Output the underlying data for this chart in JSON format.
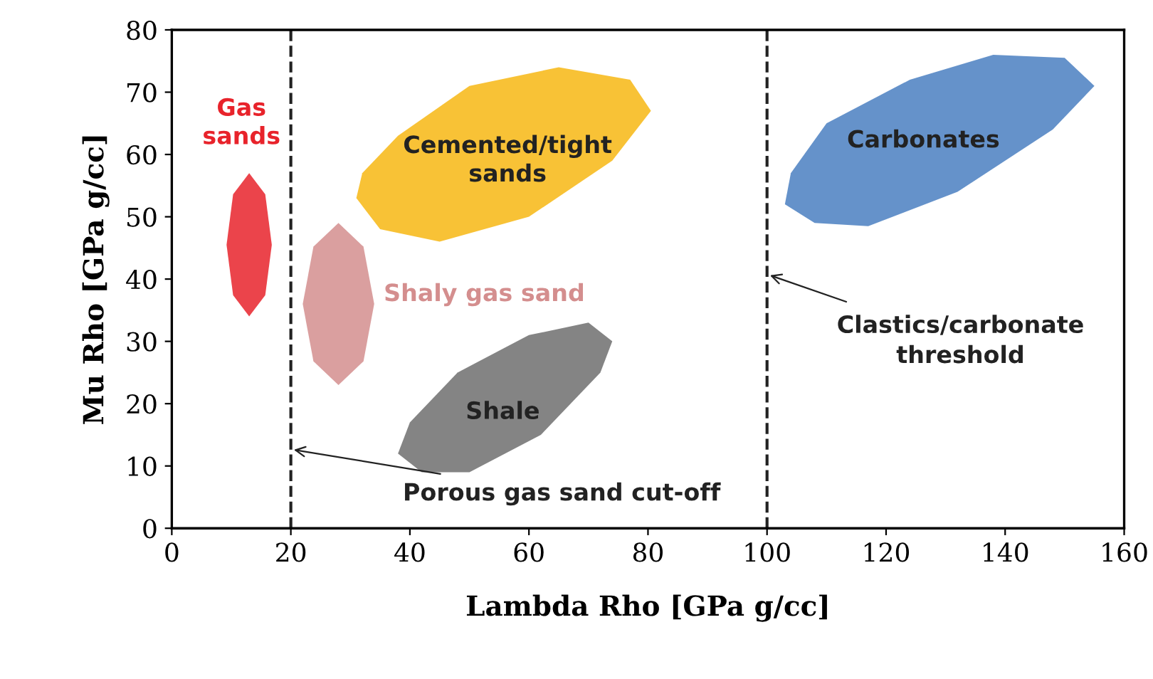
{
  "chart_data": {
    "type": "area",
    "xlabel": "Lambda Rho [GPa g/cc]",
    "ylabel": "Mu Rho [GPa g/cc]",
    "xlim": [
      0,
      160
    ],
    "ylim": [
      0,
      80
    ],
    "xticks": [
      0,
      20,
      40,
      60,
      80,
      100,
      120,
      140,
      160
    ],
    "yticks": [
      0,
      10,
      20,
      30,
      40,
      50,
      60,
      70,
      80
    ],
    "grid": false,
    "legend": false,
    "series": [
      {
        "name": "Gas sands",
        "color": "#e8232b",
        "x": [
          16.8,
          15.7,
          13,
          10.3,
          9.2,
          10.3,
          13,
          15.7
        ],
        "values": [
          45.5,
          53.6,
          57,
          53.6,
          45.5,
          37.4,
          34,
          37.4
        ]
      },
      {
        "name": "Shaly gas sand",
        "color": "#d48e8e",
        "x": [
          34,
          32.2,
          28,
          23.8,
          22,
          23.8,
          28,
          32.2
        ],
        "values": [
          36,
          45.2,
          49,
          45.2,
          36,
          26.8,
          23,
          26.8
        ]
      },
      {
        "name": "Cemented/tight sands",
        "color": "#f7b713",
        "x": [
          31,
          35,
          45,
          60,
          74,
          80.5,
          77,
          65,
          50,
          38,
          32
        ],
        "values": [
          53,
          48,
          46,
          50,
          59,
          67,
          72,
          74,
          71,
          63,
          57
        ]
      },
      {
        "name": "Shale",
        "color": "#6e6e6e",
        "x": [
          38,
          42,
          50,
          62,
          72,
          74,
          70,
          60,
          48,
          40
        ],
        "values": [
          12,
          9,
          9,
          15,
          25,
          30,
          33,
          31,
          25,
          17
        ]
      },
      {
        "name": "Carbonates",
        "color": "#4a7fc1",
        "x": [
          103,
          108,
          117,
          132,
          148,
          155,
          150,
          138,
          124,
          110,
          104
        ],
        "values": [
          52,
          49,
          48.5,
          54,
          64,
          71,
          75.5,
          76,
          72,
          65,
          57
        ]
      }
    ],
    "ref_lines": [
      {
        "axis": "x",
        "value": 20,
        "label": "Porous gas sand cut-off",
        "color": "#222222",
        "line_style": "dashed"
      },
      {
        "axis": "x",
        "value": 100,
        "label": "Clastics/carbonate threshold",
        "color": "#222222",
        "line_style": "dashed"
      }
    ]
  }
}
